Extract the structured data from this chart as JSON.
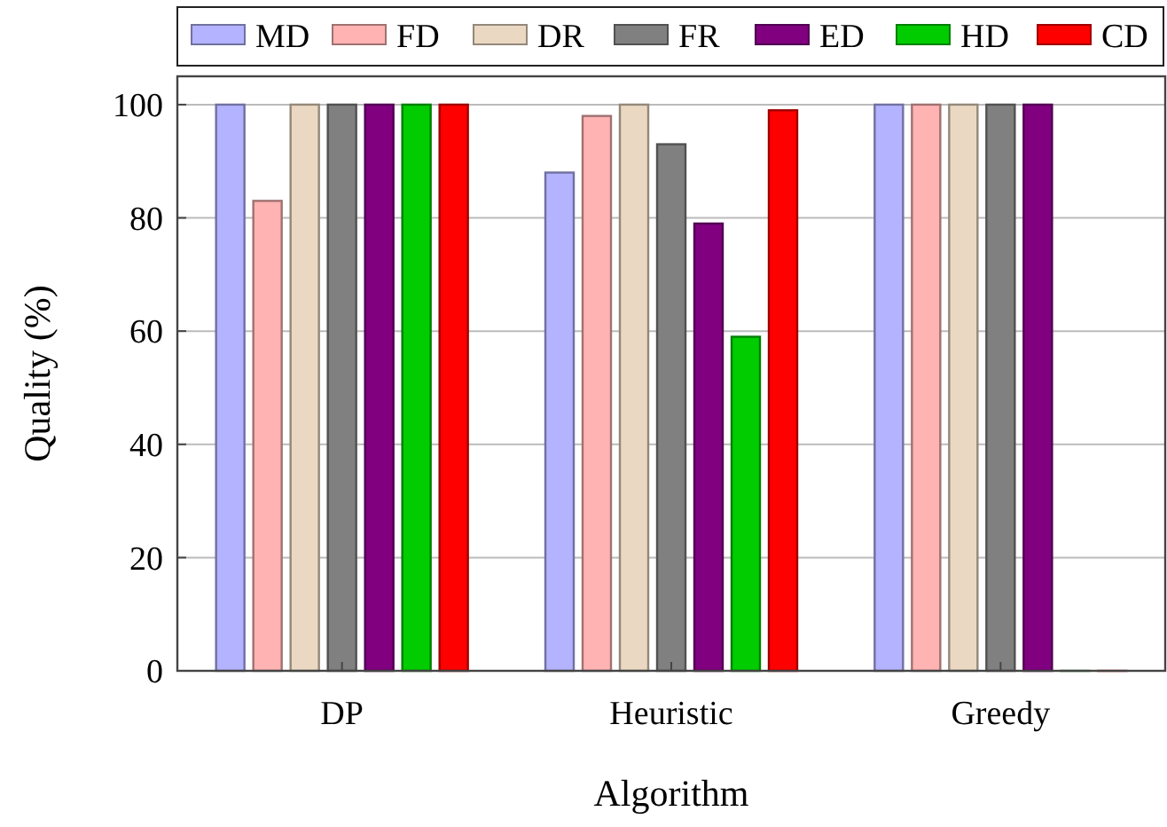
{
  "chart_data": {
    "type": "bar",
    "xlabel": "Algorithm",
    "ylabel": "Quality (%)",
    "categories": [
      "DP",
      "Heuristic",
      "Greedy"
    ],
    "series": [
      {
        "name": "MD",
        "color": "#b3b3ff",
        "values": [
          100,
          88,
          100
        ]
      },
      {
        "name": "FD",
        "color": "#ffb3b3",
        "values": [
          83,
          98,
          100
        ]
      },
      {
        "name": "DR",
        "color": "#ead8c2",
        "values": [
          100,
          100,
          100
        ]
      },
      {
        "name": "FR",
        "color": "#808080",
        "values": [
          100,
          93,
          100
        ]
      },
      {
        "name": "ED",
        "color": "#800080",
        "values": [
          100,
          79,
          100
        ]
      },
      {
        "name": "HD",
        "color": "#00cc00",
        "values": [
          100,
          59,
          0
        ]
      },
      {
        "name": "CD",
        "color": "#ff0000",
        "values": [
          100,
          99,
          0
        ]
      }
    ],
    "ylim": [
      0,
      105
    ],
    "yticks": [
      0,
      20,
      40,
      60,
      80,
      100
    ],
    "grid": "y",
    "legend": "top"
  }
}
